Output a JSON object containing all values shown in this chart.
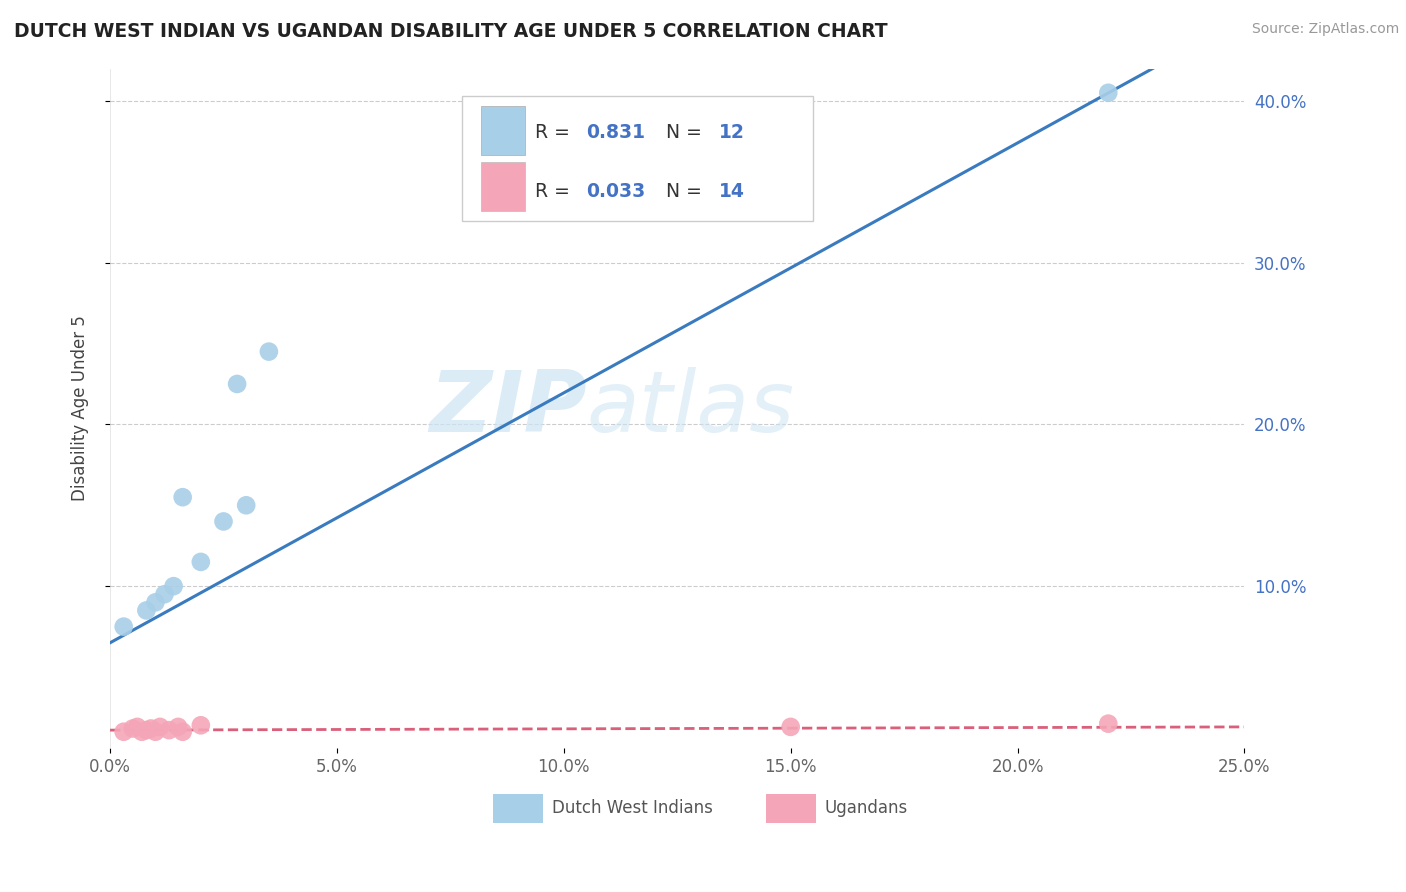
{
  "title": "DUTCH WEST INDIAN VS UGANDAN DISABILITY AGE UNDER 5 CORRELATION CHART",
  "source": "Source: ZipAtlas.com",
  "ylabel": "Disability Age Under 5",
  "xlim": [
    0,
    0.25
  ],
  "ylim": [
    0,
    0.42
  ],
  "xtick_labels": [
    "0.0%",
    "5.0%",
    "10.0%",
    "15.0%",
    "20.0%",
    "25.0%"
  ],
  "xtick_vals": [
    0,
    0.05,
    0.1,
    0.15,
    0.2,
    0.25
  ],
  "ytick_labels": [
    "10.0%",
    "20.0%",
    "30.0%",
    "40.0%"
  ],
  "ytick_vals": [
    0.1,
    0.2,
    0.3,
    0.4
  ],
  "blue_color": "#a8cfe8",
  "pink_color": "#f4a6b8",
  "blue_line_color": "#3a7bbf",
  "pink_line_color": "#d95f7a",
  "r_blue": 0.831,
  "n_blue": 12,
  "r_pink": 0.033,
  "n_pink": 14,
  "blue_x": [
    0.003,
    0.008,
    0.01,
    0.012,
    0.014,
    0.016,
    0.02,
    0.025,
    0.028,
    0.03,
    0.035,
    0.22
  ],
  "blue_y": [
    0.075,
    0.085,
    0.09,
    0.095,
    0.1,
    0.155,
    0.115,
    0.14,
    0.225,
    0.15,
    0.245,
    0.405
  ],
  "pink_x": [
    0.003,
    0.005,
    0.006,
    0.007,
    0.008,
    0.009,
    0.01,
    0.011,
    0.013,
    0.015,
    0.016,
    0.02,
    0.15,
    0.22
  ],
  "pink_y": [
    0.01,
    0.012,
    0.013,
    0.01,
    0.011,
    0.012,
    0.01,
    0.013,
    0.011,
    0.013,
    0.01,
    0.014,
    0.013,
    0.015
  ],
  "watermark_zip": "ZIP",
  "watermark_atlas": "atlas",
  "blue_line_intercept": 0.065,
  "blue_line_slope": 1.545,
  "pink_line_intercept": 0.011,
  "pink_line_slope": 0.008
}
